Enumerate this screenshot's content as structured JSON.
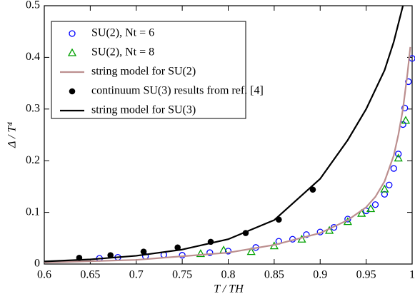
{
  "chart_data": {
    "type": "scatter",
    "xlabel": "T / TH",
    "ylabel": "Δ / T⁴",
    "xlim": [
      0.6,
      1.0
    ],
    "ylim": [
      0,
      0.5
    ],
    "xticks": [
      {
        "value": 0.6,
        "label": "0.6"
      },
      0.65,
      {
        "value": 0.7,
        "label": "0.7"
      },
      0.75,
      {
        "value": 0.8,
        "label": "0.8"
      },
      0.85,
      {
        "value": 0.9,
        "label": "0.9"
      },
      0.95,
      1
    ],
    "yticks": [
      0,
      0.1,
      0.2,
      0.3,
      0.4,
      0.5
    ],
    "legend": "upper left",
    "series": [
      {
        "name": "SU(2), Nt = 6",
        "marker": "circle",
        "color": "#0000ff",
        "x": [
          0.66,
          0.68,
          0.71,
          0.73,
          0.75,
          0.78,
          0.8,
          0.83,
          0.855,
          0.87,
          0.885,
          0.9,
          0.915,
          0.93,
          0.95,
          0.96,
          0.97,
          0.975,
          0.98,
          0.985,
          0.99,
          0.992,
          0.996,
          1.0
        ],
        "values": [
          0.011,
          0.013,
          0.015,
          0.018,
          0.017,
          0.022,
          0.025,
          0.032,
          0.044,
          0.048,
          0.057,
          0.062,
          0.071,
          0.087,
          0.103,
          0.115,
          0.135,
          0.153,
          0.185,
          0.213,
          0.27,
          0.302,
          0.353,
          0.398
        ]
      },
      {
        "name": "SU(2), Nt = 8",
        "marker": "triangle",
        "color": "#00a000",
        "x": [
          0.77,
          0.795,
          0.825,
          0.85,
          0.88,
          0.91,
          0.93,
          0.945,
          0.955,
          0.97,
          0.985,
          0.993
        ],
        "values": [
          0.02,
          0.027,
          0.024,
          0.035,
          0.048,
          0.065,
          0.082,
          0.098,
          0.107,
          0.145,
          0.205,
          0.278
        ]
      },
      {
        "name": "string model for SU(2)",
        "marker": "line",
        "color": "#bc8f8f",
        "x": [
          0.6,
          0.7,
          0.8,
          0.85,
          0.9,
          0.93,
          0.95,
          0.96,
          0.97,
          0.98,
          0.985,
          0.99,
          0.995,
          0.998
        ],
        "values": [
          0.003,
          0.008,
          0.022,
          0.037,
          0.06,
          0.085,
          0.11,
          0.13,
          0.16,
          0.21,
          0.25,
          0.3,
          0.37,
          0.42
        ]
      },
      {
        "name": "continuum SU(3) results from ref. [4]",
        "marker": "dot",
        "color": "#000000",
        "x": [
          0.638,
          0.672,
          0.708,
          0.745,
          0.781,
          0.819,
          0.855,
          0.892
        ],
        "values": [
          0.012,
          0.017,
          0.024,
          0.032,
          0.043,
          0.06,
          0.086,
          0.144
        ]
      },
      {
        "name": "string model for SU(3)",
        "marker": "line",
        "color": "#000000",
        "x": [
          0.6,
          0.65,
          0.7,
          0.75,
          0.8,
          0.85,
          0.9,
          0.93,
          0.95,
          0.97,
          0.98,
          0.99
        ],
        "values": [
          0.005,
          0.009,
          0.016,
          0.028,
          0.048,
          0.085,
          0.165,
          0.24,
          0.3,
          0.375,
          0.43,
          0.5
        ]
      }
    ]
  }
}
